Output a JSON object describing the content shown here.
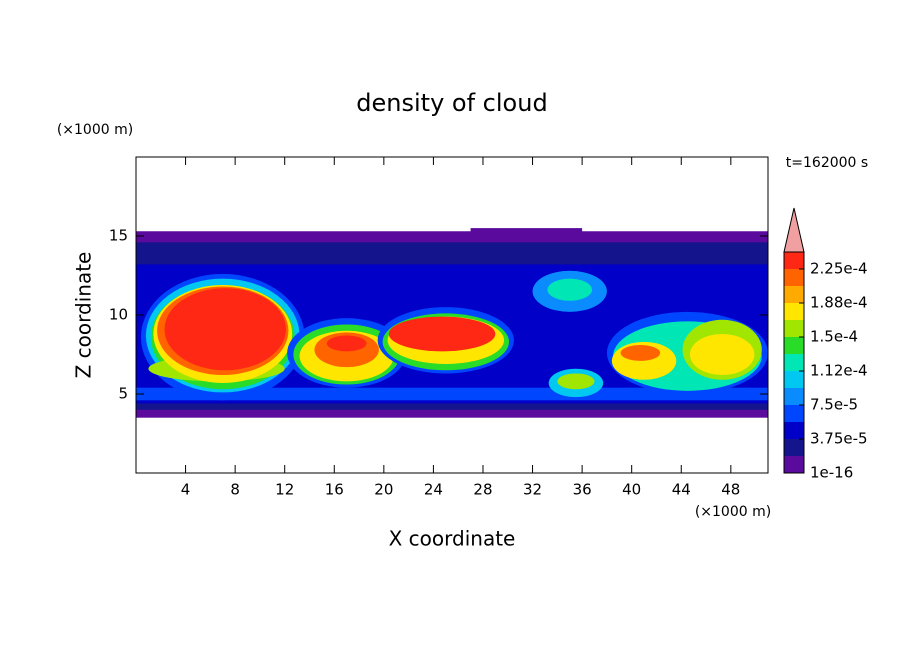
{
  "chart_data": {
    "type": "contour",
    "title": "density of cloud",
    "x_label": "X coordinate",
    "y_label": "Z coordinate",
    "x_unit": "(×1000 m)",
    "y_unit": "(×1000 m)",
    "time_label": "t=162000 s",
    "xlim": [
      0,
      51
    ],
    "ylim": [
      0,
      20
    ],
    "xticks": [
      4,
      8,
      12,
      16,
      20,
      24,
      28,
      32,
      36,
      40,
      44,
      48
    ],
    "yticks": [
      5,
      10,
      15
    ],
    "colorbar": {
      "levels": [
        1e-16,
        1.875e-05,
        3.75e-05,
        5.625e-05,
        7.5e-05,
        9.375e-05,
        0.0001125,
        0.00013125,
        0.00015,
        0.00016875,
        0.0001875,
        0.00020625,
        0.000225,
        0.00024375
      ],
      "colors": [
        "#5a0a9c",
        "#14148c",
        "#0000c8",
        "#0046ff",
        "#0a8cff",
        "#00c8f0",
        "#00e6b4",
        "#28dc28",
        "#a0e600",
        "#ffe600",
        "#ffaa00",
        "#ff6400",
        "#ff2814"
      ],
      "extend_color": "#f0a0a0",
      "ticks": [
        {
          "value": 1e-16,
          "label": "1e-16"
        },
        {
          "value": 3.75e-05,
          "label": "3.75e-5"
        },
        {
          "value": 7.5e-05,
          "label": "7.5e-5"
        },
        {
          "value": 0.0001125,
          "label": "1.12e-4"
        },
        {
          "value": 0.00015,
          "label": "1.5e-4"
        },
        {
          "value": 0.0001875,
          "label": "1.88e-4"
        },
        {
          "value": 0.000225,
          "label": "2.25e-4"
        }
      ]
    },
    "layers": [
      {
        "x0": 0,
        "x1": 51,
        "z0": 3.5,
        "z1": 15.3,
        "value": 1e-05
      },
      {
        "x0": 27,
        "x1": 36,
        "z0": 15,
        "z1": 15.5,
        "value": 1e-05
      },
      {
        "x0": 0,
        "x1": 51,
        "z0": 4,
        "z1": 14.6,
        "value": 2.5e-05
      },
      {
        "x0": 0,
        "x1": 51,
        "z0": 4.4,
        "z1": 13.2,
        "value": 4.5e-05
      },
      {
        "x0": 0,
        "x1": 51,
        "z0": 4.6,
        "z1": 5.4,
        "value": 6e-05
      }
    ],
    "cells": [
      {
        "x": 7,
        "z": 8.6,
        "rx": 6.6,
        "rz": 4,
        "value": 6e-05
      },
      {
        "x": 7,
        "z": 8.7,
        "rx": 6.2,
        "rz": 3.6,
        "value": 0.0001
      },
      {
        "x": 7,
        "z": 8.6,
        "rx": 5.8,
        "rz": 3.3,
        "value": 0.00014
      },
      {
        "x": 6.5,
        "z": 6.6,
        "rx": 5.5,
        "rz": 0.8,
        "value": 0.00016
      },
      {
        "x": 7,
        "z": 8.8,
        "rx": 5.6,
        "rz": 3.1,
        "value": 0.00018
      },
      {
        "x": 7,
        "z": 9,
        "rx": 5.3,
        "rz": 2.8,
        "value": 0.00021
      },
      {
        "x": 7.2,
        "z": 9.1,
        "rx": 4.9,
        "rz": 2.6,
        "value": 0.000235
      },
      {
        "x": 17,
        "z": 7.6,
        "rx": 4.8,
        "rz": 2.2,
        "value": 6e-05
      },
      {
        "x": 17,
        "z": 7.5,
        "rx": 4.3,
        "rz": 1.9,
        "value": 0.00014
      },
      {
        "x": 17,
        "z": 7.4,
        "rx": 3.8,
        "rz": 1.6,
        "value": 0.00018
      },
      {
        "x": 17,
        "z": 7.8,
        "rx": 2.6,
        "rz": 1.1,
        "value": 0.00021
      },
      {
        "x": 17,
        "z": 8.2,
        "rx": 1.6,
        "rz": 0.5,
        "value": 0.000235
      },
      {
        "x": 25,
        "z": 8.4,
        "rx": 5.5,
        "rz": 2.1,
        "value": 6e-05
      },
      {
        "x": 25,
        "z": 8.3,
        "rx": 5.1,
        "rz": 1.8,
        "value": 0.00014
      },
      {
        "x": 25,
        "z": 8.4,
        "rx": 4.7,
        "rz": 1.5,
        "value": 0.00018
      },
      {
        "x": 24.7,
        "z": 8.8,
        "rx": 4.3,
        "rz": 1.1,
        "value": 0.000235
      },
      {
        "x": 35,
        "z": 11.5,
        "rx": 3,
        "rz": 1.3,
        "value": 8e-05
      },
      {
        "x": 35,
        "z": 11.6,
        "rx": 1.8,
        "rz": 0.7,
        "value": 0.00012
      },
      {
        "x": 35.5,
        "z": 5.7,
        "rx": 2.2,
        "rz": 0.9,
        "value": 0.0001
      },
      {
        "x": 35.5,
        "z": 5.8,
        "rx": 1.5,
        "rz": 0.5,
        "value": 0.00016
      },
      {
        "x": 44.5,
        "z": 7.6,
        "rx": 6.5,
        "rz": 2.6,
        "value": 6e-05
      },
      {
        "x": 44.5,
        "z": 7.4,
        "rx": 6,
        "rz": 2.2,
        "value": 0.00012
      },
      {
        "x": 41,
        "z": 7.1,
        "rx": 2.6,
        "rz": 1.2,
        "value": 0.00018
      },
      {
        "x": 40.7,
        "z": 7.6,
        "rx": 1.6,
        "rz": 0.5,
        "value": 0.00022
      },
      {
        "x": 47.3,
        "z": 7.8,
        "rx": 3.2,
        "rz": 1.9,
        "value": 0.00016
      },
      {
        "x": 47.3,
        "z": 7.5,
        "rx": 2.6,
        "rz": 1.3,
        "value": 0.00018
      }
    ]
  }
}
